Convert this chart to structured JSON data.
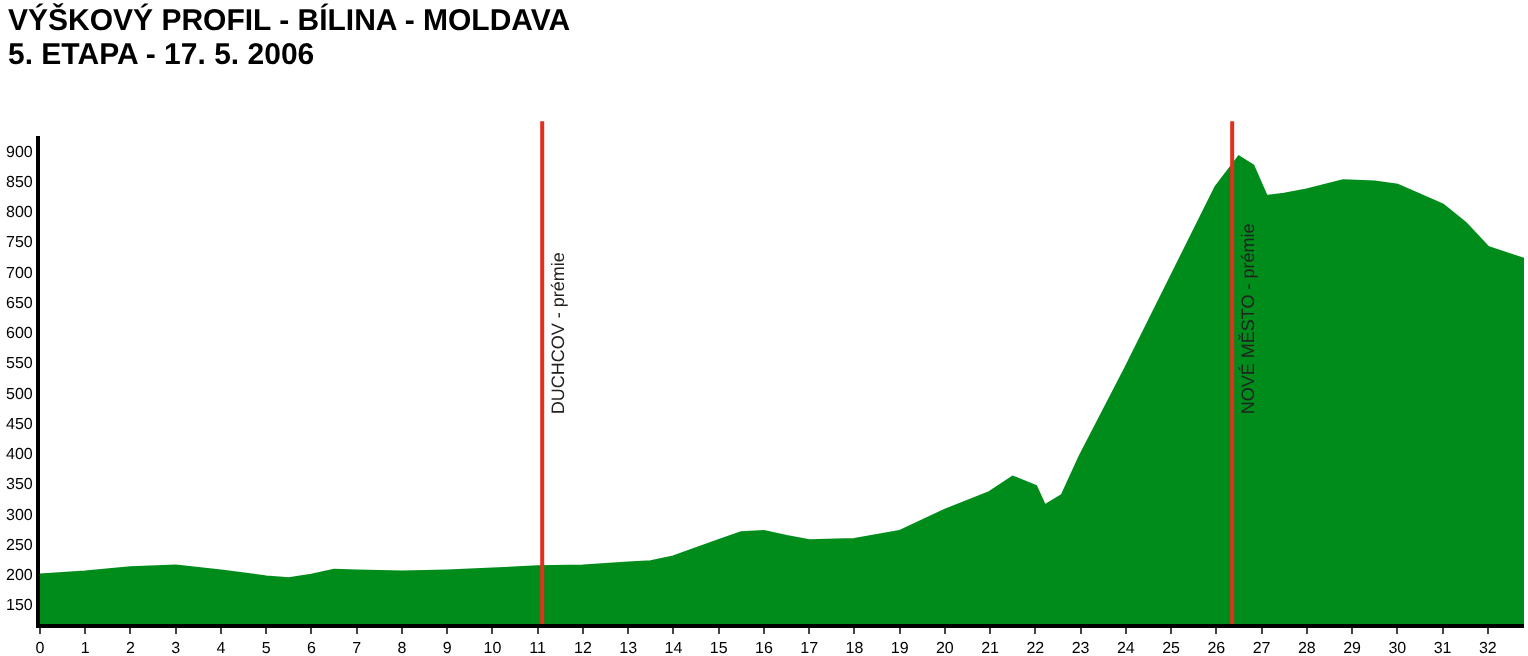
{
  "chart_data": {
    "type": "area",
    "title": "VÝŠKOVÝ PROFIL - BÍLINA - MOLDAVA",
    "subtitle": "5. ETAPA - 17. 5. 2006",
    "x": [
      0,
      1,
      2,
      3,
      4,
      5,
      5.5,
      6,
      6.5,
      7,
      8,
      9,
      10,
      11,
      12,
      13,
      13.5,
      14,
      15,
      15.5,
      16,
      16.5,
      17,
      18,
      19,
      20,
      21,
      21.5,
      22,
      22.2,
      22.6,
      23,
      24,
      25,
      26,
      26.5,
      26.8,
      27.1,
      27.5,
      28,
      28.8,
      29.5,
      30,
      31,
      31.5,
      32,
      32.8
    ],
    "series": [
      {
        "color": "#008c1a",
        "values": [
          198,
          203,
          210,
          213,
          205,
          195,
          192,
          198,
          206,
          205,
          203,
          205,
          208,
          212,
          213,
          218,
          220,
          228,
          255,
          268,
          270,
          262,
          255,
          257,
          270,
          305,
          335,
          360,
          345,
          312,
          330,
          395,
          540,
          690,
          840,
          889,
          875,
          824,
          828,
          835,
          850,
          848,
          843,
          810,
          780,
          740,
          720
        ]
      }
    ],
    "xlim": [
      0,
      32.8
    ],
    "xticks": [
      0,
      1,
      2,
      3,
      4,
      5,
      6,
      7,
      8,
      9,
      10,
      11,
      12,
      13,
      14,
      15,
      16,
      17,
      18,
      19,
      20,
      21,
      22,
      23,
      24,
      25,
      26,
      27,
      28,
      29,
      30,
      31,
      32
    ],
    "ylim": [
      118,
      925
    ],
    "yticks": [
      150,
      200,
      250,
      300,
      350,
      400,
      450,
      500,
      550,
      600,
      650,
      700,
      750,
      800,
      850,
      900
    ],
    "grid": false,
    "ref_lines": [
      {
        "axis": "x",
        "value": 11.1,
        "label": "DUCHCOV - prémie",
        "color": "#e0301e"
      },
      {
        "axis": "x",
        "value": 26.35,
        "label": "NOVÉ MĚSTO - prémie",
        "color": "#e0301e"
      }
    ]
  }
}
